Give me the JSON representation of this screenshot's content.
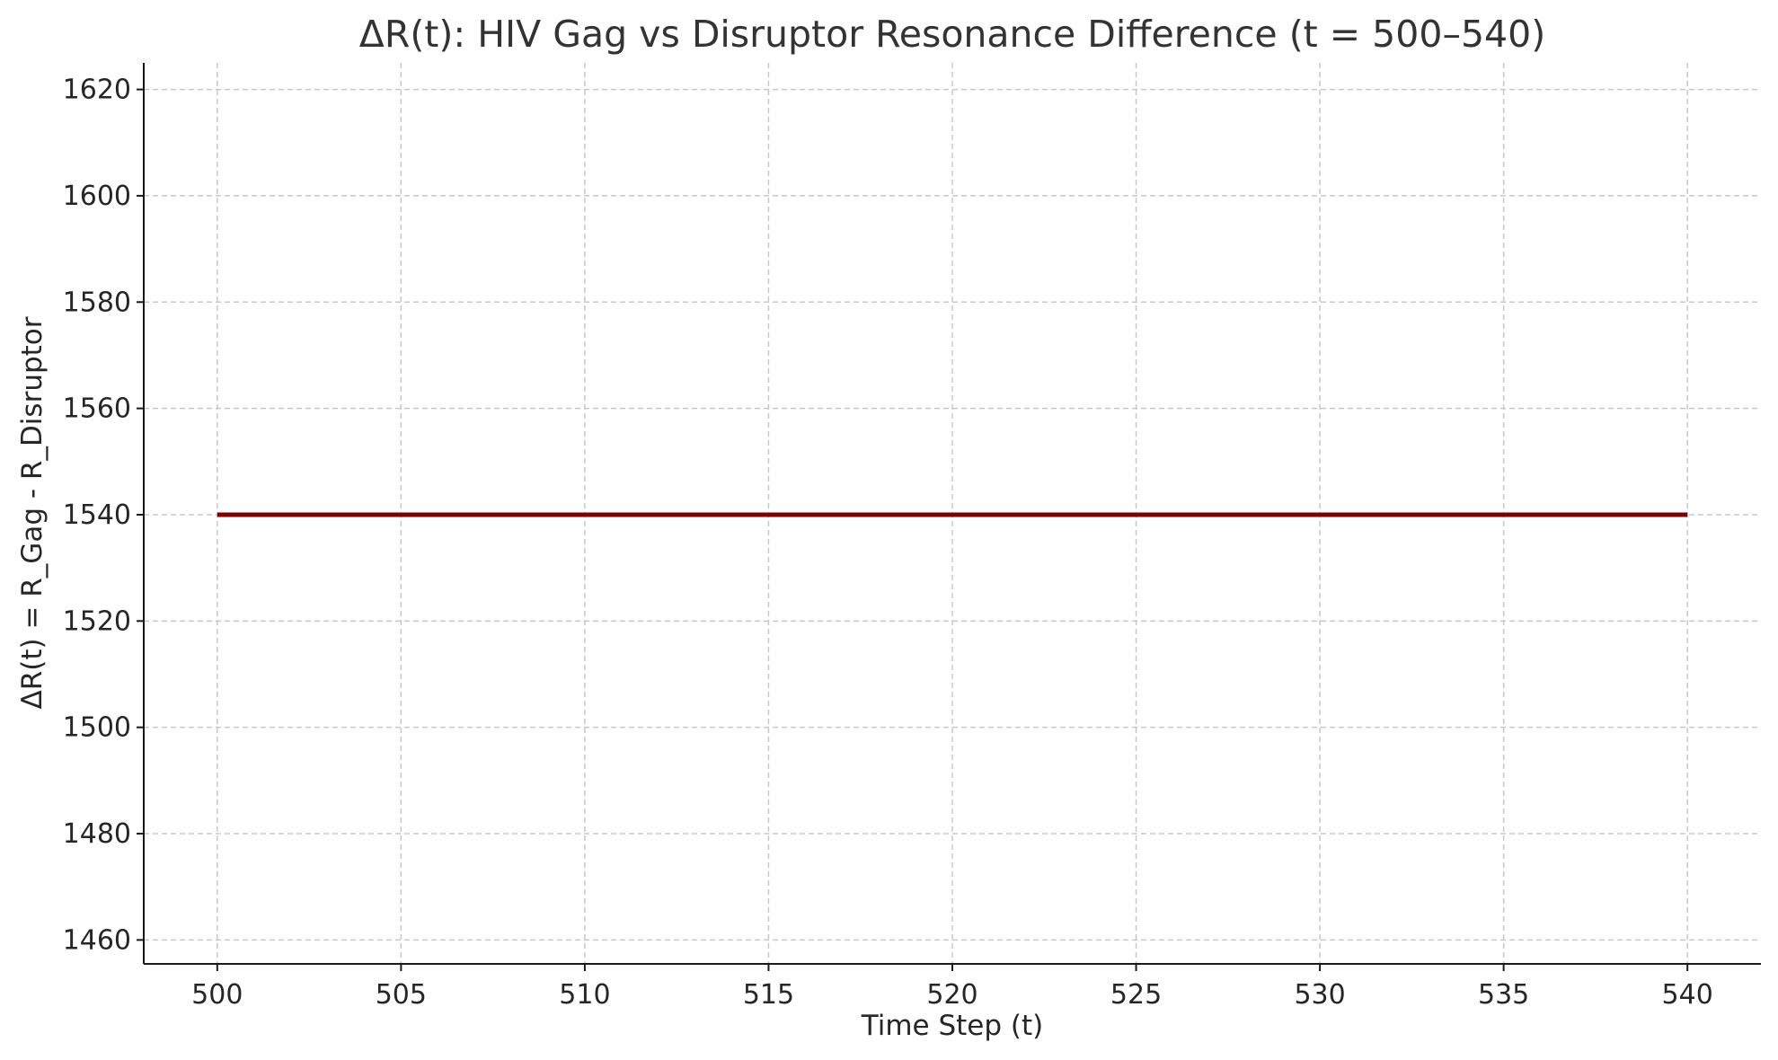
{
  "chart_data": {
    "type": "line",
    "title": "ΔR(t): HIV Gag vs Disruptor Resonance Difference (t = 500–540)",
    "xlabel": "Time Step (t)",
    "ylabel": "ΔR(t) = R_Gag - R_Disruptor",
    "xlim": [
      498,
      542
    ],
    "ylim": [
      1455.5,
      1625
    ],
    "x_ticks": [
      500,
      505,
      510,
      515,
      520,
      525,
      530,
      535,
      540
    ],
    "y_ticks": [
      1460,
      1480,
      1500,
      1520,
      1540,
      1560,
      1580,
      1600,
      1620
    ],
    "grid": true,
    "series": [
      {
        "color": "#800000",
        "x": [
          500,
          501,
          502,
          503,
          504,
          505,
          506,
          507,
          508,
          509,
          510,
          511,
          512,
          513,
          514,
          515,
          516,
          517,
          518,
          519,
          520,
          521,
          522,
          523,
          524,
          525,
          526,
          527,
          528,
          529,
          530,
          531,
          532,
          533,
          534,
          535,
          536,
          537,
          538,
          539,
          540
        ],
        "values": [
          1540,
          1540,
          1540,
          1540,
          1540,
          1540,
          1540,
          1540,
          1540,
          1540,
          1540,
          1540,
          1540,
          1540,
          1540,
          1540,
          1540,
          1540,
          1540,
          1540,
          1540,
          1540,
          1540,
          1540,
          1540,
          1540,
          1540,
          1540,
          1540,
          1540,
          1540,
          1540,
          1540,
          1540,
          1540,
          1540,
          1540,
          1540,
          1540,
          1540,
          1540
        ]
      }
    ]
  }
}
